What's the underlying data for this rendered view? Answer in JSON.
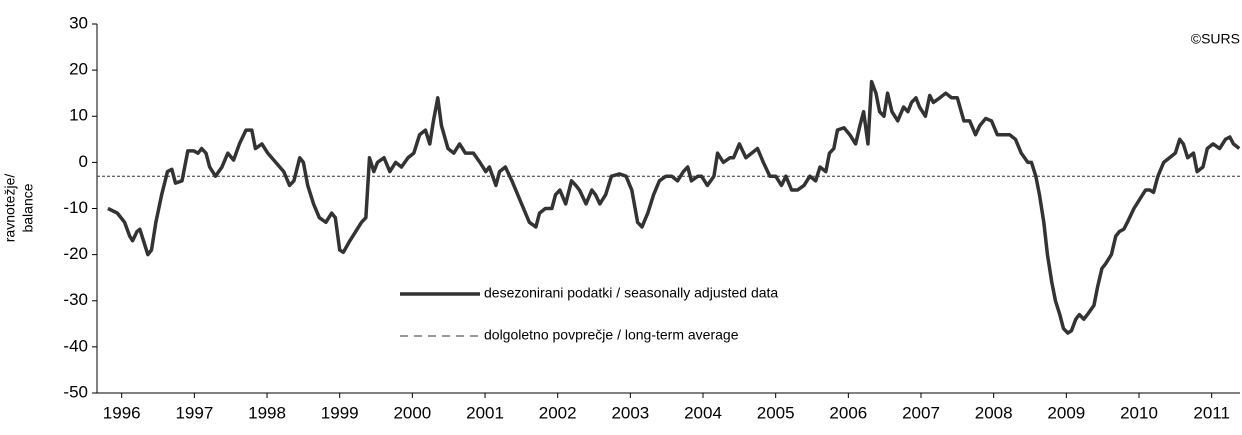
{
  "chart_data": {
    "type": "line",
    "ylabel": [
      "ravnotežje/",
      "balance"
    ],
    "annotation": "©SURS",
    "xlim": [
      1995.66,
      2011.39
    ],
    "xticks": [
      1996,
      1997,
      1998,
      1999,
      2000,
      2001,
      2002,
      2003,
      2004,
      2005,
      2006,
      2007,
      2008,
      2009,
      2010,
      2011
    ],
    "ylim": [
      -50,
      30
    ],
    "yticks": [
      -50,
      -40,
      -30,
      -20,
      -10,
      0,
      10,
      20,
      30
    ],
    "grid": false,
    "legend_position": "center",
    "series": [
      {
        "name": "desezonirani podatki / seasonally adjusted data",
        "color": "#333333",
        "style": "solid",
        "x": [
          1995.81,
          1995.94,
          1996.04,
          1996.11,
          1996.15,
          1996.21,
          1996.25,
          1996.3,
          1996.36,
          1996.41,
          1996.47,
          1996.55,
          1996.63,
          1996.69,
          1996.74,
          1996.83,
          1996.91,
          1996.99,
          1997.05,
          1997.1,
          1997.16,
          1997.21,
          1997.29,
          1997.38,
          1997.46,
          1997.54,
          1997.62,
          1997.71,
          1997.79,
          1997.84,
          1997.93,
          1998.01,
          1998.12,
          1998.23,
          1998.31,
          1998.37,
          1998.45,
          1998.5,
          1998.56,
          1998.64,
          1998.72,
          1998.81,
          1998.89,
          1998.94,
          1999.0,
          1999.05,
          1999.14,
          1999.22,
          1999.3,
          1999.36,
          1999.41,
          1999.47,
          1999.52,
          1999.61,
          1999.69,
          1999.77,
          1999.85,
          1999.94,
          2000.02,
          2000.1,
          2000.18,
          2000.24,
          2000.29,
          2000.35,
          2000.4,
          2000.49,
          2000.57,
          2000.65,
          2000.73,
          2000.84,
          2000.93,
          2001.01,
          2001.06,
          2001.15,
          2001.2,
          2001.28,
          2001.37,
          2001.45,
          2001.53,
          2001.61,
          2001.7,
          2001.75,
          2001.83,
          2001.92,
          2001.97,
          2002.03,
          2002.11,
          2002.19,
          2002.25,
          2002.3,
          2002.39,
          2002.47,
          2002.52,
          2002.58,
          2002.66,
          2002.74,
          2002.85,
          2002.94,
          2003.02,
          2003.1,
          2003.16,
          2003.24,
          2003.32,
          2003.4,
          2003.49,
          2003.57,
          2003.65,
          2003.73,
          2003.79,
          2003.84,
          2003.93,
          2003.98,
          2004.06,
          2004.15,
          2004.2,
          2004.28,
          2004.37,
          2004.42,
          2004.5,
          2004.59,
          2004.67,
          2004.75,
          2004.83,
          2004.92,
          2005.0,
          2005.08,
          2005.14,
          2005.22,
          2005.3,
          2005.39,
          2005.47,
          2005.55,
          2005.61,
          2005.69,
          2005.74,
          2005.8,
          2005.85,
          2005.94,
          2006.02,
          2006.1,
          2006.16,
          2006.21,
          2006.27,
          2006.32,
          2006.38,
          2006.43,
          2006.49,
          2006.54,
          2006.6,
          2006.68,
          2006.76,
          2006.82,
          2006.87,
          2006.93,
          2006.98,
          2007.06,
          2007.12,
          2007.17,
          2007.26,
          2007.34,
          2007.42,
          2007.5,
          2007.59,
          2007.67,
          2007.75,
          2007.81,
          2007.89,
          2007.97,
          2008.05,
          2008.14,
          2008.22,
          2008.3,
          2008.38,
          2008.47,
          2008.52,
          2008.58,
          2008.63,
          2008.69,
          2008.74,
          2008.8,
          2008.85,
          2008.91,
          2008.96,
          2009.02,
          2009.07,
          2009.13,
          2009.18,
          2009.24,
          2009.29,
          2009.38,
          2009.43,
          2009.49,
          2009.54,
          2009.62,
          2009.68,
          2009.73,
          2009.79,
          2009.84,
          2009.93,
          2010.01,
          2010.09,
          2010.15,
          2010.2,
          2010.26,
          2010.34,
          2010.42,
          2010.5,
          2010.56,
          2010.61,
          2010.67,
          2010.75,
          2010.8,
          2010.88,
          2010.94,
          2011.02,
          2011.11,
          2011.19,
          2011.25,
          2011.3,
          2011.38
        ],
        "values": [
          -10,
          -11,
          -13,
          -16,
          -17,
          -15,
          -14.5,
          -17,
          -20,
          -19,
          -13,
          -7,
          -2,
          -1.5,
          -4.5,
          -4,
          2.5,
          2.5,
          2,
          3,
          2,
          -1,
          -3,
          -1,
          2,
          0.5,
          4,
          7,
          7,
          3,
          4,
          2,
          0,
          -2,
          -5,
          -4,
          1,
          0,
          -5,
          -9,
          -12,
          -13,
          -11,
          -12,
          -19,
          -19.5,
          -17,
          -15,
          -13,
          -12,
          1,
          -2,
          0,
          1,
          -2,
          0,
          -1,
          1,
          2,
          6,
          7,
          4,
          9,
          14,
          8,
          3,
          2,
          4,
          2,
          2,
          0,
          -2,
          -1,
          -5,
          -2,
          -1,
          -4,
          -7,
          -10,
          -13,
          -14,
          -11,
          -10,
          -10,
          -7,
          -6,
          -9,
          -4,
          -5,
          -6,
          -9,
          -6,
          -7,
          -9,
          -7,
          -3,
          -2.5,
          -3,
          -6,
          -13,
          -14,
          -11,
          -7,
          -4,
          -3,
          -3,
          -4,
          -2,
          -1,
          -4,
          -3,
          -3,
          -5,
          -3,
          2,
          0,
          1,
          1,
          4,
          1,
          2,
          3,
          0,
          -3,
          -3,
          -5,
          -3,
          -6,
          -6,
          -5,
          -3,
          -4,
          -1,
          -2,
          2,
          3,
          7,
          7.5,
          6,
          4,
          8,
          11,
          4,
          17.5,
          15,
          11,
          10,
          15,
          11,
          9,
          12,
          11,
          13,
          14,
          12,
          10,
          14.5,
          13,
          14,
          15,
          14,
          14,
          9,
          9,
          6,
          8,
          9.5,
          9,
          6,
          6,
          6,
          5,
          2,
          0,
          0,
          -3,
          -7,
          -13,
          -20,
          -26,
          -30,
          -33,
          -36,
          -37,
          -36.5,
          -34,
          -33,
          -34,
          -33,
          -31,
          -27,
          -23,
          -22,
          -20,
          -16,
          -15,
          -14.5,
          -13,
          -10,
          -8,
          -6,
          -6,
          -6.5,
          -3,
          0,
          1,
          2,
          5,
          4,
          1,
          2,
          -2,
          -1,
          3,
          4,
          3,
          5,
          5.5,
          4,
          3
        ]
      },
      {
        "name": "dolgoletno povprečje / long-term average",
        "color": "#333333",
        "style": "dashed",
        "x": [
          1995.66,
          2011.39
        ],
        "values": [
          -3,
          -3
        ]
      }
    ]
  }
}
